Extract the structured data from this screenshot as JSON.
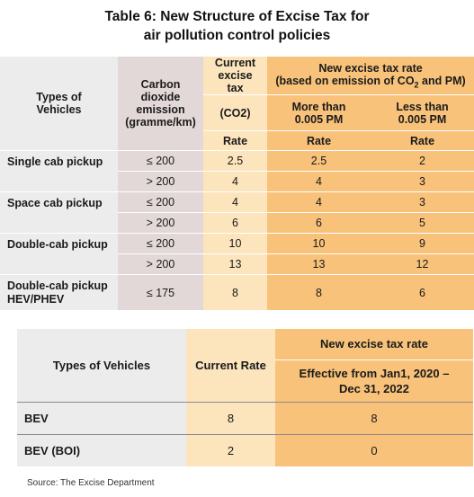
{
  "title_line1": "Table 6: New Structure of Excise Tax for",
  "title_line2": "air pollution control policies",
  "table1": {
    "col_types": "Types of Vehicles",
    "col_emission": "Carbon dioxide emission (gramme/km)",
    "col_current": "Current excise tax",
    "col_current_sub": "(CO2)",
    "col_new": "New excise tax rate",
    "col_new_sub": "(based on emission of CO",
    "col_new_sub2": " and PM)",
    "col_more": "More than 0.005 PM",
    "col_less": "Less than 0.005 PM",
    "rate_label": "Rate",
    "groups": [
      {
        "type": "Single cab pickup",
        "rows": [
          {
            "emission": "≤ 200",
            "current": "2.5",
            "more": "2.5",
            "less": "2"
          },
          {
            "emission": "> 200",
            "current": "4",
            "more": "4",
            "less": "3"
          }
        ]
      },
      {
        "type": "Space cab pickup",
        "rows": [
          {
            "emission": "≤ 200",
            "current": "4",
            "more": "4",
            "less": "3"
          },
          {
            "emission": "> 200",
            "current": "6",
            "more": "6",
            "less": "5"
          }
        ]
      },
      {
        "type": "Double-cab pickup",
        "rows": [
          {
            "emission": "≤ 200",
            "current": "10",
            "more": "10",
            "less": "9"
          },
          {
            "emission": "> 200",
            "current": "13",
            "more": "13",
            "less": "12"
          }
        ]
      },
      {
        "type": "Double-cab pickup HEV/PHEV",
        "rows": [
          {
            "emission": "≤ 175",
            "current": "8",
            "more": "8",
            "less": "6"
          }
        ]
      }
    ]
  },
  "table2": {
    "col_types": "Types of Vehicles",
    "col_current": "Current Rate",
    "col_new": "New excise tax rate",
    "col_effective": "Effective from Jan1, 2020 – Dec 31, 2022",
    "rows": [
      {
        "type": "BEV",
        "current": "8",
        "new": "8"
      },
      {
        "type": "BEV (BOI)",
        "current": "2",
        "new": "0"
      }
    ]
  },
  "source": "Source: The Excise Department"
}
